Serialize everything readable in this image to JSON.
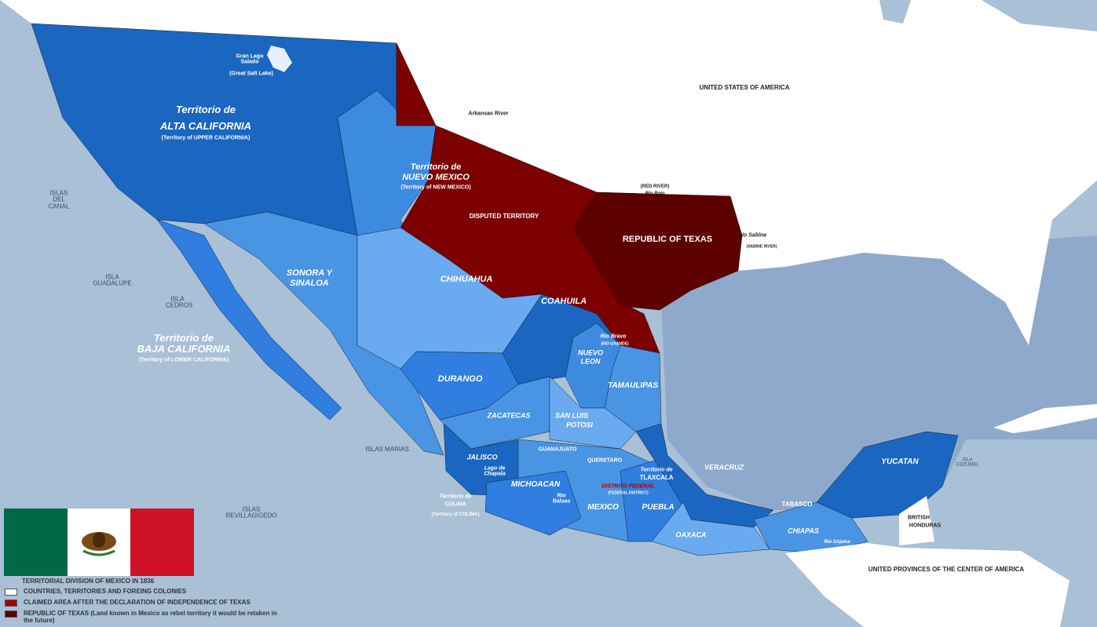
{
  "colors": {
    "ocean": "#a9c0d6",
    "gulf": "#8fa9cc",
    "foreign": "#ffffff",
    "claimed": "#7c0000",
    "texas": "#5c0000",
    "state_dark": "#1a66c0",
    "state_mid": "#2f7ee0",
    "state_light": "#4a94e4",
    "state_pale": "#6aaaf0"
  },
  "labels": {
    "usa": "UNITED STATES OF AMERICA",
    "alta_california": "Territorio de",
    "alta_california2": "ALTA CALIFORNIA",
    "alta_california_en": "(Territory of UPPER CALIFORNIA)",
    "salt_lake": "Gran Lago Salado",
    "salt_lake_en": "(Great Salt Lake)",
    "arkansas": "Arkansas River",
    "nuevo_mexico": "Territorio de",
    "nuevo_mexico2": "NUEVO MEXICO",
    "nuevo_mexico_en": "(Territory of NEW MEXICO)",
    "disputed": "DISPUTED TERRITORY",
    "red_river": "(RED RIVER)",
    "rio_rojo": "Rio Rojo",
    "texas": "REPUBLIC OF TEXAS",
    "sabine": "Rio Sabina",
    "sabine_en": "(SABINE RIVER)",
    "islas_canal": "ISLAS DEL CANAL",
    "isla_guadalupe": "ISLA GUADALUPE",
    "isla_cedros": "ISLA CEDROS",
    "baja": "Territorio de",
    "baja2": "BAJA CALIFORNIA",
    "baja_en": "(Territory of LOWER CALIFORNIA)",
    "sonora": "SONORA Y",
    "sonora2": "SINALOA",
    "chihuahua": "CHIHUAHUA",
    "coahuila": "COAHUILA",
    "rio_bravo": "Rio Bravo",
    "rio_bravo_en": "(RIO GRANDE)",
    "nuevo_leon": "NUEVO",
    "nuevo_leon2": "LEON",
    "tamaulipas": "TAMAULIPAS",
    "durango": "DURANGO",
    "zacatecas": "ZACATECAS",
    "slp": "SAN LUIS",
    "slp2": "POTOSI",
    "islas_marias": "ISLAS MARIAS",
    "jalisco": "JALISCO",
    "chapala": "Lago de Chapala",
    "guanajuato": "GUANAJUATO",
    "queretaro": "QUERETARO",
    "tlaxcala": "Territorio de",
    "tlaxcala2": "TLAXCALA",
    "df": "DISTRITO FEDERAL",
    "df_en": "(FEDERAL DISTRICT)",
    "michoacan": "MICHOACAN",
    "rio_balsas": "Rio Balsas",
    "colima": "Territorio de",
    "colima2": "COLIMA",
    "colima_en": "(Territory of COLIMA)",
    "mexico": "MEXICO",
    "puebla": "PUEBLA",
    "veracruz": "VERACRUZ",
    "oaxaca": "OAXACA",
    "tabasco": "TABASCO",
    "chiapas": "CHIAPAS",
    "rio_grijalva": "Rio Grijalva",
    "yucatan": "YUCATAN",
    "cozumel": "ISLA COZUMEL",
    "british_honduras": "BRITISH",
    "british_honduras2": "HONDURAS",
    "central_america": "UNITED PROVINCES OF THE CENTER OF AMERICA",
    "revillagigedo": "ISLAS REVILLAGIGEDO"
  },
  "legend": {
    "title": "TERRITORIAL DIVISION OF MEXICO IN 1836",
    "items": [
      {
        "label": "COUNTRIES, TERRITORIES AND FOREING COLONIES",
        "color": "#ffffff"
      },
      {
        "label": "CLAIMED AREA AFTER THE DECLARATION OF INDEPENDENCE OF TEXAS",
        "color": "#a00000"
      },
      {
        "label": "REPUBLIC OF TEXAS (Land known in Mexico as rebel territory it would be retaken in the future)",
        "color": "#5c0000"
      }
    ]
  },
  "flag": {
    "colors": [
      "#006847",
      "#ffffff",
      "#ce1126"
    ],
    "emblem": "eagle-on-cactus"
  }
}
